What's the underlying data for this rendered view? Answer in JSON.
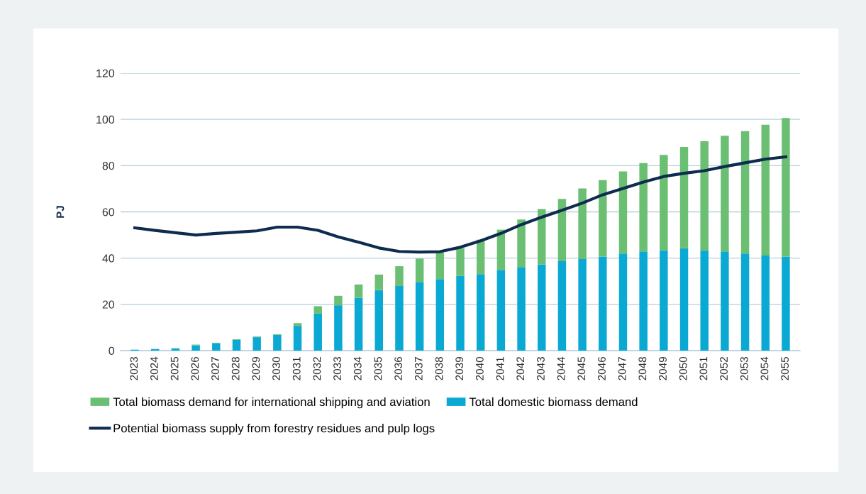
{
  "chart_data": {
    "type": "bar",
    "stacked": true,
    "ylabel": "PJ",
    "categories": [
      "2023",
      "2024",
      "2025",
      "2026",
      "2027",
      "2028",
      "2029",
      "2030",
      "2031",
      "2032",
      "2033",
      "2034",
      "2035",
      "2036",
      "2037",
      "2038",
      "2039",
      "2040",
      "2041",
      "2042",
      "2043",
      "2044",
      "2045",
      "2046",
      "2047",
      "2048",
      "2049",
      "2050",
      "2051",
      "2052",
      "2053",
      "2054",
      "2055"
    ],
    "series": [
      {
        "name": "Total domestic biomass demand",
        "color": "#0aa9d3",
        "values": [
          0.4,
          0.7,
          1.0,
          2.3,
          3.1,
          4.6,
          5.8,
          6.8,
          10.7,
          16.0,
          19.6,
          22.9,
          26.2,
          27.9,
          29.7,
          30.9,
          32.3,
          33.1,
          34.9,
          36.1,
          37.2,
          38.7,
          39.6,
          40.7,
          42.0,
          42.9,
          43.4,
          44.3,
          43.4,
          42.9,
          42.0,
          41.1,
          40.7
        ]
      },
      {
        "name": "Total biomass demand for international shipping and aviation",
        "color": "#6bbf73",
        "values": [
          0,
          0,
          0,
          0.3,
          0.3,
          0.3,
          0.3,
          0.3,
          1.2,
          3.2,
          4.1,
          5.7,
          6.7,
          8.6,
          10.1,
          11.5,
          12.0,
          14.9,
          17.4,
          20.6,
          24.0,
          26.9,
          30.5,
          33.0,
          35.5,
          38.2,
          41.2,
          43.8,
          47.1,
          50.0,
          52.9,
          56.6,
          59.9
        ]
      },
      {
        "name": "Potential biomass supply from forestry residues and pulp logs",
        "type": "line",
        "color": "#0d2c4f",
        "values": [
          53.1,
          52.0,
          51.0,
          50.0,
          50.7,
          51.2,
          51.8,
          53.4,
          53.4,
          52.0,
          49.2,
          46.9,
          44.4,
          42.9,
          42.6,
          42.8,
          44.7,
          47.5,
          50.7,
          54.5,
          57.7,
          60.7,
          63.8,
          67.4,
          70.1,
          72.9,
          75.3,
          76.7,
          77.8,
          79.6,
          81.2,
          82.8,
          83.8
        ]
      }
    ],
    "ylim": [
      0,
      120
    ],
    "yticks": [
      0,
      20,
      40,
      60,
      80,
      100,
      120
    ],
    "grid": "y",
    "legend": "bottom"
  }
}
